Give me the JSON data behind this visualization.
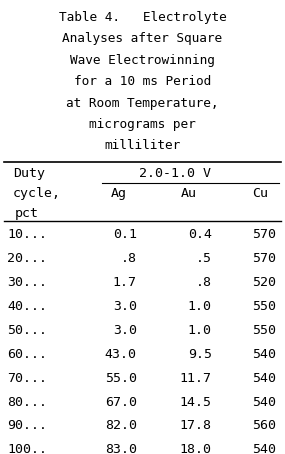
{
  "title_lines": [
    "Table 4.   Electrolyte",
    "Analyses after Square",
    "Wave Electrowinning",
    "for a 10 ms Period",
    "at Room Temperature,",
    "micrograms per",
    "milliliter"
  ],
  "col_header_voltage": "2.0-1.0 V",
  "col_headers": [
    "Ag",
    "Au",
    "Cu"
  ],
  "rows": [
    [
      "10...",
      "0.1",
      "0.4",
      "570"
    ],
    [
      "20...",
      ".8",
      ".5",
      "570"
    ],
    [
      "30...",
      "1.7",
      ".8",
      "520"
    ],
    [
      "40...",
      "3.0",
      "1.0",
      "550"
    ],
    [
      "50...",
      "3.0",
      "1.0",
      "550"
    ],
    [
      "60...",
      "43.0",
      "9.5",
      "540"
    ],
    [
      "70...",
      "55.0",
      "11.7",
      "540"
    ],
    [
      "80...",
      "67.0",
      "14.5",
      "540"
    ],
    [
      "90...",
      "82.0",
      "17.8",
      "560"
    ],
    [
      "100..",
      "83.0",
      "18.0",
      "540"
    ]
  ],
  "bg_color": "#ffffff",
  "font_family": "monospace",
  "font_size": 9.5,
  "font_size_title": 9.2
}
